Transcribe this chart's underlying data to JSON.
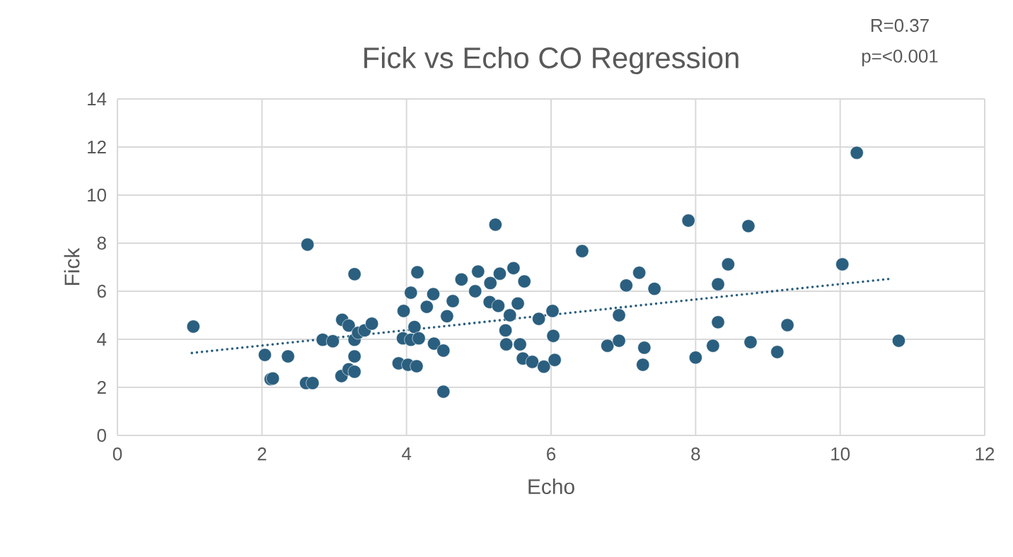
{
  "chart_data": {
    "type": "scatter",
    "title": "Fick vs Echo CO Regression",
    "xlabel": "Echo",
    "ylabel": "Fick",
    "annotations": [
      "R=0.37",
      "p=<0.001"
    ],
    "xlim": [
      0,
      12
    ],
    "ylim": [
      0,
      14
    ],
    "xticks": [
      0,
      2,
      4,
      6,
      8,
      10,
      12
    ],
    "yticks": [
      0,
      2,
      4,
      6,
      8,
      10,
      12,
      14
    ],
    "grid": true,
    "marker": "circle",
    "series": [
      {
        "color": "#2b5f7f",
        "x": [
          1.05,
          2.63,
          3.28,
          2.04,
          2.36,
          2.12,
          2.15,
          2.61,
          2.7,
          2.84,
          2.98,
          3.11,
          3.2,
          3.28,
          3.33,
          3.42,
          3.52,
          3.28,
          3.1,
          3.2,
          3.28,
          4.15,
          4.06,
          4.28,
          3.96,
          4.37,
          4.11,
          3.95,
          4.06,
          4.17,
          4.38,
          3.89,
          4.02,
          4.14,
          4.64,
          4.56,
          4.51,
          4.51,
          4.76,
          4.99,
          5.23,
          4.95,
          5.16,
          5.29,
          5.48,
          5.63,
          5.15,
          5.27,
          5.43,
          5.54,
          5.83,
          6.02,
          5.37,
          5.38,
          5.57,
          6.03,
          5.61,
          5.74,
          5.9,
          6.05,
          6.43,
          6.78,
          6.94,
          6.94,
          7.04,
          7.22,
          7.43,
          7.29,
          7.27,
          7.9,
          8.73,
          8.45,
          8.31,
          8.31,
          8.24,
          8.0,
          8.76,
          9.27,
          9.13,
          10.03,
          10.23,
          10.81
        ],
        "values": [
          4.53,
          7.94,
          6.71,
          3.35,
          3.29,
          2.34,
          2.37,
          2.18,
          2.18,
          3.98,
          3.92,
          4.81,
          4.57,
          3.98,
          4.27,
          4.37,
          4.65,
          3.29,
          2.47,
          2.75,
          2.65,
          6.79,
          5.94,
          5.35,
          5.18,
          5.88,
          4.51,
          4.04,
          3.98,
          4.04,
          3.82,
          3.0,
          2.94,
          2.88,
          5.59,
          4.96,
          3.53,
          1.82,
          6.49,
          6.82,
          8.77,
          6.0,
          6.34,
          6.73,
          6.96,
          6.41,
          5.55,
          5.39,
          5.0,
          5.49,
          4.85,
          5.18,
          4.37,
          3.79,
          3.79,
          4.14,
          3.2,
          3.06,
          2.86,
          3.14,
          7.67,
          3.73,
          3.94,
          5.0,
          6.24,
          6.77,
          6.1,
          3.65,
          2.94,
          8.94,
          8.71,
          7.12,
          6.29,
          4.71,
          3.73,
          3.24,
          3.88,
          4.59,
          3.47,
          7.12,
          11.76,
          3.94
        ]
      },
      {
        "type": "line",
        "color": "#2b5f7f",
        "line_style": "dotted",
        "marker": "none",
        "x": [
          1.03,
          10.73
        ],
        "values": [
          3.43,
          6.53
        ]
      }
    ]
  }
}
